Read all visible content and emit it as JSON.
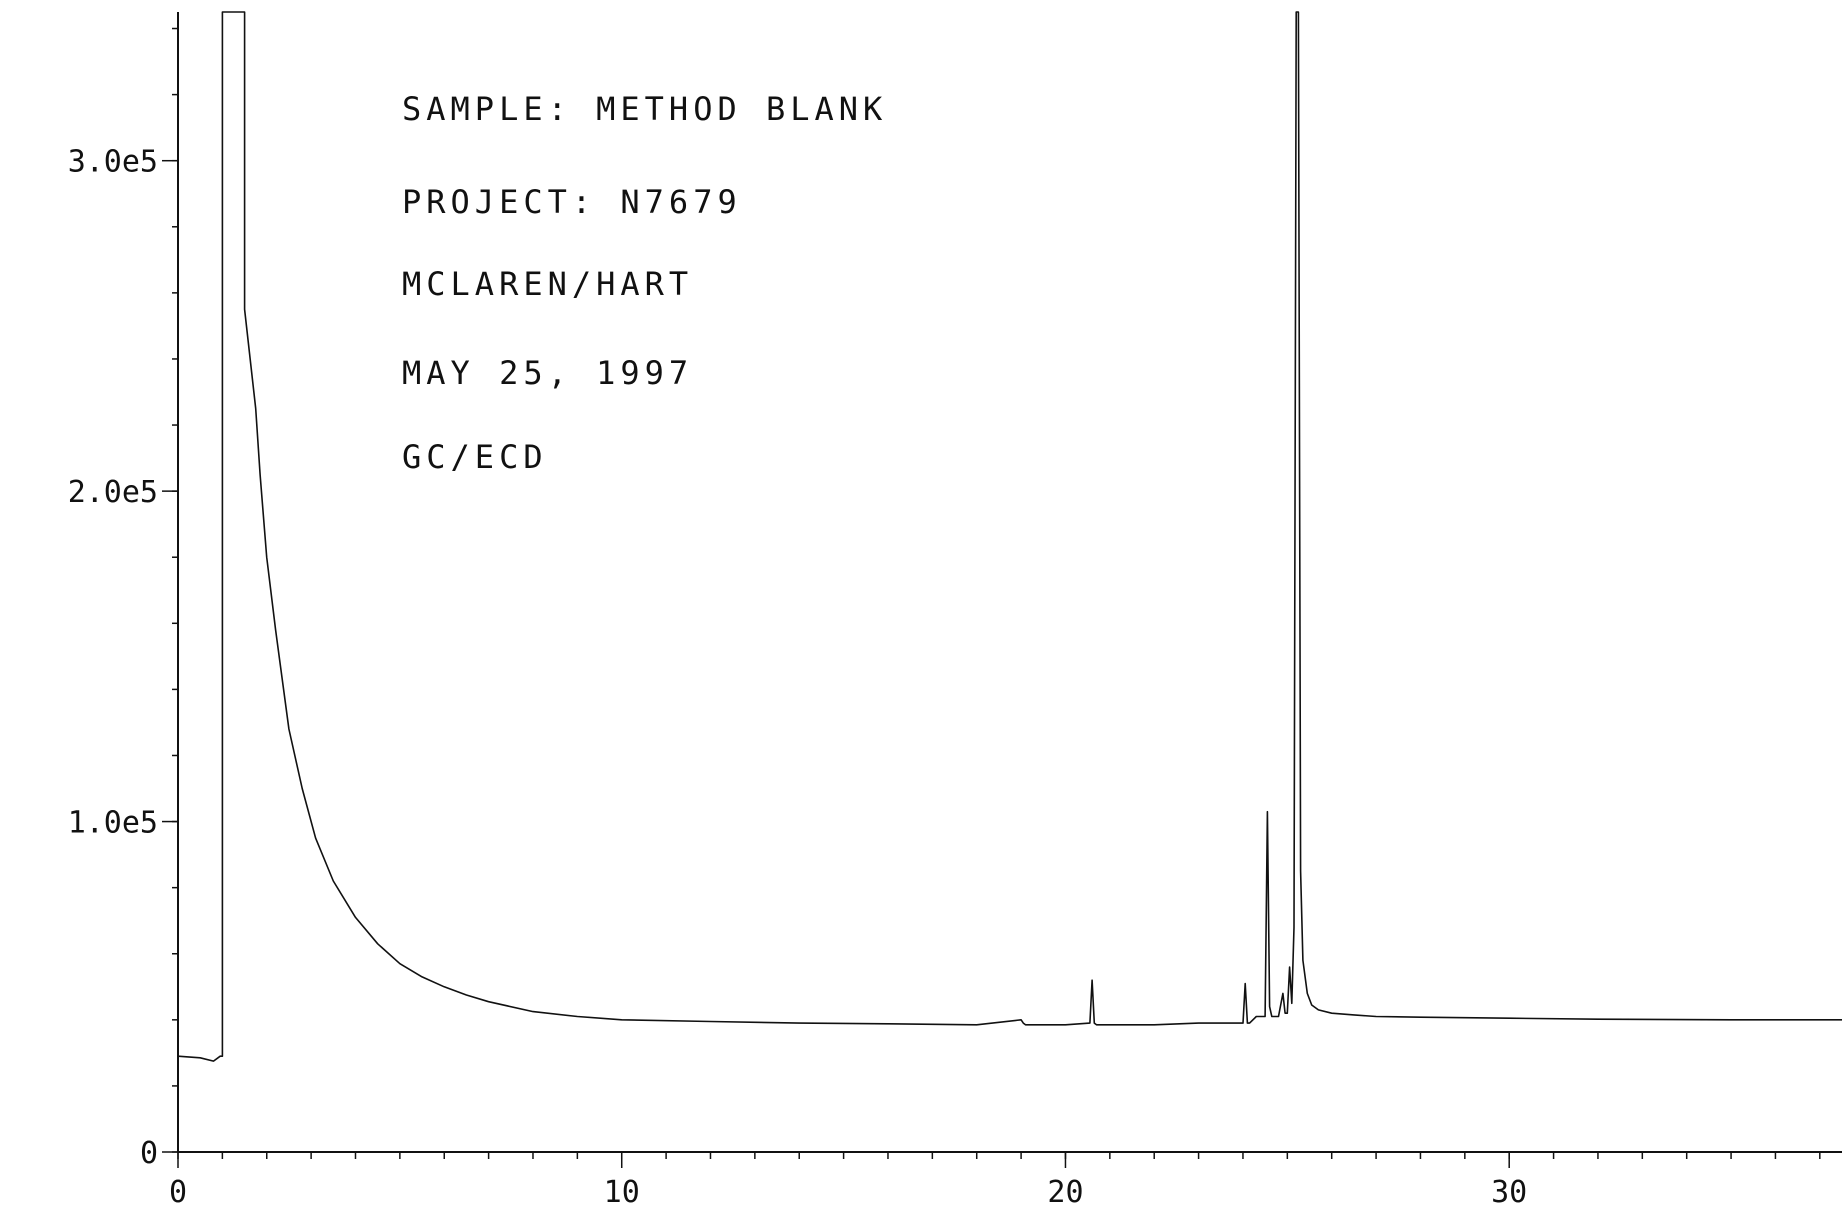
{
  "chart_data": {
    "type": "line",
    "title": "",
    "xlabel": "",
    "ylabel": "",
    "xlim": [
      0,
      37.5
    ],
    "ylim": [
      0,
      345000
    ],
    "x_ticks": [
      {
        "value": 0,
        "label": "0"
      },
      {
        "value": 10,
        "label": "10"
      },
      {
        "value": 20,
        "label": "20"
      },
      {
        "value": 30,
        "label": "30"
      }
    ],
    "y_ticks": [
      {
        "value": 0,
        "label": "0"
      },
      {
        "value": 100000,
        "label": "1.0e5"
      },
      {
        "value": 200000,
        "label": "2.0e5"
      },
      {
        "value": 300000,
        "label": "3.0e5"
      }
    ],
    "annotations": [
      "SAMPLE:  METHOD BLANK",
      "PROJECT:  N7679",
      "MCLAREN/HART",
      "MAY 25, 1997",
      "GC/ECD"
    ],
    "grid": false,
    "legend": "none",
    "series": [
      {
        "x": [
          0,
          0.5,
          0.8,
          0.95,
          1.0,
          1.0,
          1.5,
          1.5,
          1.75,
          1.85,
          2.0,
          2.2,
          2.5,
          2.8,
          3.1,
          3.5,
          4.0,
          4.5,
          5.0,
          5.5,
          6.0,
          6.5,
          7.0,
          8.0,
          9.0,
          10.0,
          12.0,
          14.0,
          16.0,
          18.0,
          19.0,
          19.05,
          19.1,
          20.0,
          20.55,
          20.6,
          20.65,
          20.7,
          21.0,
          22.0,
          23.0,
          24.0,
          24.05,
          24.1,
          24.15,
          24.3,
          24.5,
          24.55,
          24.6,
          24.65,
          24.8,
          24.9,
          24.95,
          25.0,
          25.05,
          25.1,
          25.15,
          25.2,
          25.25,
          25.3,
          25.35,
          25.45,
          25.55,
          25.7,
          26.0,
          26.5,
          27.0,
          28.0,
          30.0,
          32.0,
          35.0,
          37.5
        ],
        "y": [
          29000,
          28500,
          27500,
          29000,
          29000,
          345000,
          345000,
          255000,
          225000,
          205000,
          180000,
          158000,
          128000,
          110000,
          95000,
          82000,
          71000,
          63000,
          57000,
          53000,
          50000,
          47500,
          45500,
          42500,
          41000,
          40000,
          39500,
          39000,
          38800,
          38500,
          40000,
          39000,
          38500,
          38500,
          39000,
          52000,
          39000,
          38500,
          38500,
          38500,
          39000,
          39000,
          51000,
          39000,
          39000,
          41000,
          41000,
          103000,
          44000,
          41000,
          41000,
          48000,
          42000,
          42000,
          56000,
          45000,
          68000,
          345000,
          345000,
          85000,
          58000,
          48000,
          44500,
          43000,
          42000,
          41500,
          41000,
          40800,
          40500,
          40200,
          40000,
          40000
        ]
      }
    ]
  }
}
